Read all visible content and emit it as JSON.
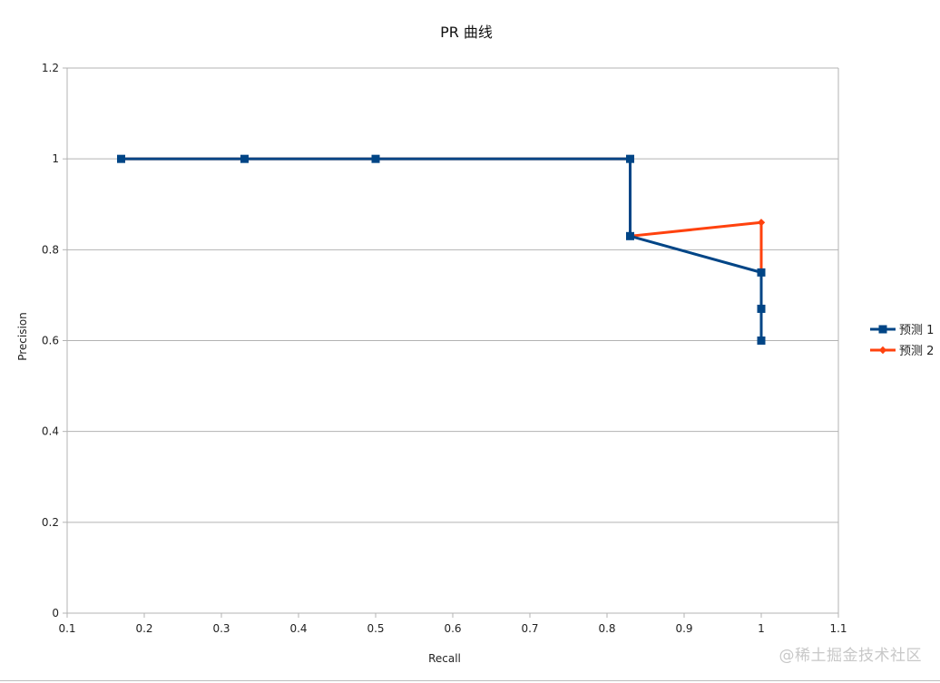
{
  "chart_data": {
    "type": "line",
    "title": "PR 曲线",
    "xlabel": "Recall",
    "ylabel": "Precision",
    "xlim": [
      0.1,
      1.1
    ],
    "ylim": [
      0,
      1.2
    ],
    "xticks": [
      "0.1",
      "0.2",
      "0.3",
      "0.4",
      "0.5",
      "0.6",
      "0.7",
      "0.8",
      "0.9",
      "1",
      "1.1"
    ],
    "yticks": [
      "0",
      "0.2",
      "0.4",
      "0.6",
      "0.8",
      "1",
      "1.2"
    ],
    "grid": "horizontal",
    "legend_position": "right",
    "series": [
      {
        "name": "预测1",
        "legend_label": "预测 1",
        "color": "#004586",
        "marker": "square",
        "x": [
          0.17,
          0.33,
          0.5,
          0.83,
          0.83,
          1,
          1,
          1
        ],
        "y": [
          1,
          1,
          1,
          1,
          0.83,
          0.75,
          0.67,
          0.6
        ]
      },
      {
        "name": "预测2",
        "legend_label": "预测 2",
        "color": "#ff420e",
        "marker": "diamond",
        "x": [
          0.17,
          0.33,
          0.5,
          0.83,
          0.83,
          1,
          1
        ],
        "y": [
          1,
          1,
          1,
          1,
          0.83,
          0.86,
          0.75
        ]
      }
    ]
  },
  "watermark": "@稀土掘金技术社区"
}
